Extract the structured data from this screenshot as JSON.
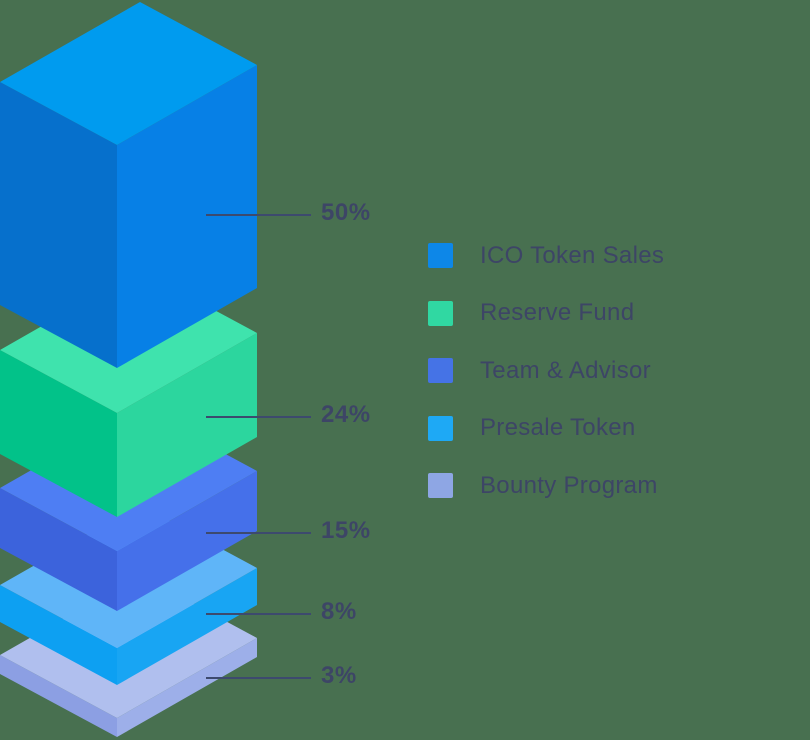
{
  "background_color": "#487050",
  "text_color": "#3d4566",
  "leader_line_color": "#3d4a6e",
  "chart_data": {
    "type": "bar",
    "variant": "isometric-3d-stacked-slabs",
    "title": "",
    "unit": "%",
    "categories": [
      "ICO Token Sales",
      "Reserve Fund",
      "Team & Advisor",
      "Presale Token",
      "Bounty Program"
    ],
    "values": [
      50,
      24,
      15,
      8,
      3
    ],
    "legend_position": "right-middle",
    "slabs": [
      {
        "name": "ICO Token Sales",
        "value": 50,
        "label": "50%",
        "legend_color": "#0d87e8",
        "faces": {
          "top": "#009bef",
          "left": "#0670cc",
          "right": "#0780e6"
        }
      },
      {
        "name": "Reserve Fund",
        "value": 24,
        "label": "24%",
        "legend_color": "#30d8a2",
        "faces": {
          "top": "#3fe3ad",
          "left": "#02c289",
          "right": "#2cd69e"
        }
      },
      {
        "name": "Team & Advisor",
        "value": 15,
        "label": "15%",
        "legend_color": "#4573e6",
        "faces": {
          "top": "#4e7ef3",
          "left": "#3c63dc",
          "right": "#4570ea"
        }
      },
      {
        "name": "Presale Token",
        "value": 8,
        "label": "8%",
        "legend_color": "#1ea9f5",
        "faces": {
          "top": "#5fb5f8",
          "left": "#0da0f2",
          "right": "#18a5f3"
        }
      },
      {
        "name": "Bounty Program",
        "value": 3,
        "label": "3%",
        "legend_color": "#8ea6e4",
        "faces": {
          "top": "#b0bfee",
          "left": "#8c9fe3",
          "right": "#9dafe9"
        }
      }
    ]
  }
}
